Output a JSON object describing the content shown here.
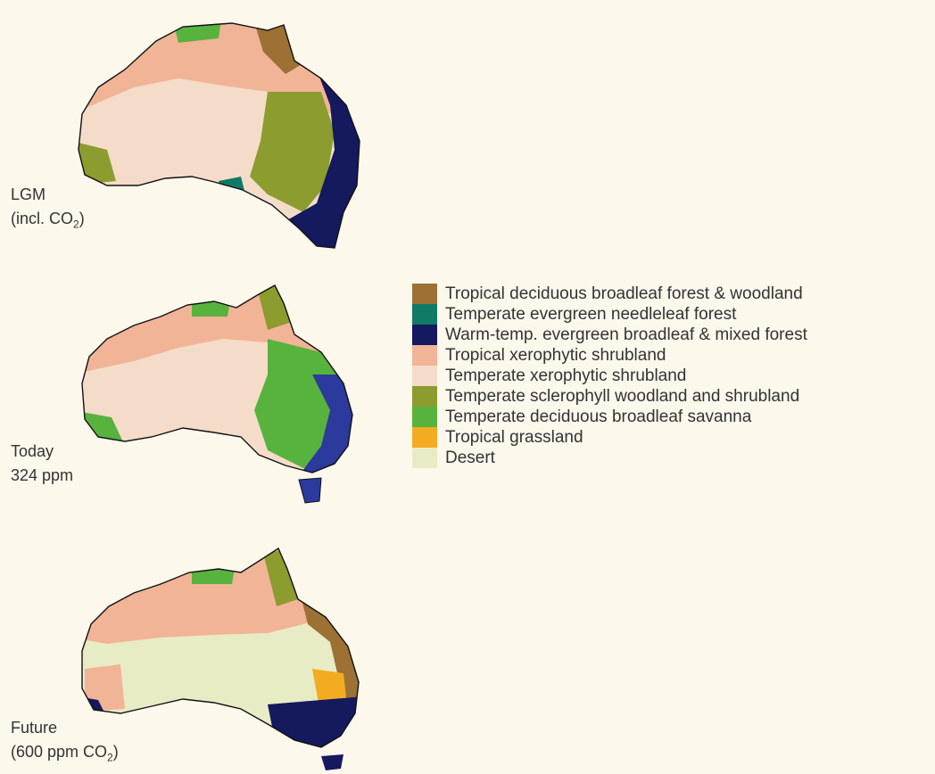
{
  "panels": [
    {
      "id": "lgm",
      "label_line1": "LGM",
      "label_line2_prefix": "(incl. CO",
      "label_line2_sub": "2",
      "label_line2_suffix": ")"
    },
    {
      "id": "today",
      "label_line1": "Today",
      "label_line2_prefix": "324 ppm",
      "label_line2_sub": "",
      "label_line2_suffix": ""
    },
    {
      "id": "future",
      "label_line1": "Future",
      "label_line2_prefix": "(600 ppm CO",
      "label_line2_sub": "2",
      "label_line2_suffix": ")"
    }
  ],
  "legend": [
    {
      "label": "Tropical deciduous broadleaf forest & woodland",
      "color": "#9c7133"
    },
    {
      "label": "Temperate evergreen needleleaf forest",
      "color": "#117a67"
    },
    {
      "label": "Warm-temp. evergreen broadleaf & mixed forest",
      "color": "#15195e"
    },
    {
      "label": "Tropical xerophytic shrubland",
      "color": "#f2b497"
    },
    {
      "label": "Temperate xerophytic shrubland",
      "color": "#f4dcc9"
    },
    {
      "label": "Temperate sclerophyll woodland and shrubland",
      "color": "#8c9c2e"
    },
    {
      "label": "Temperate deciduous broadleaf savanna",
      "color": "#57b33e"
    },
    {
      "label": "Tropical grassland",
      "color": "#f3ac22"
    },
    {
      "label": "Desert",
      "color": "#e8ecc4"
    }
  ]
}
